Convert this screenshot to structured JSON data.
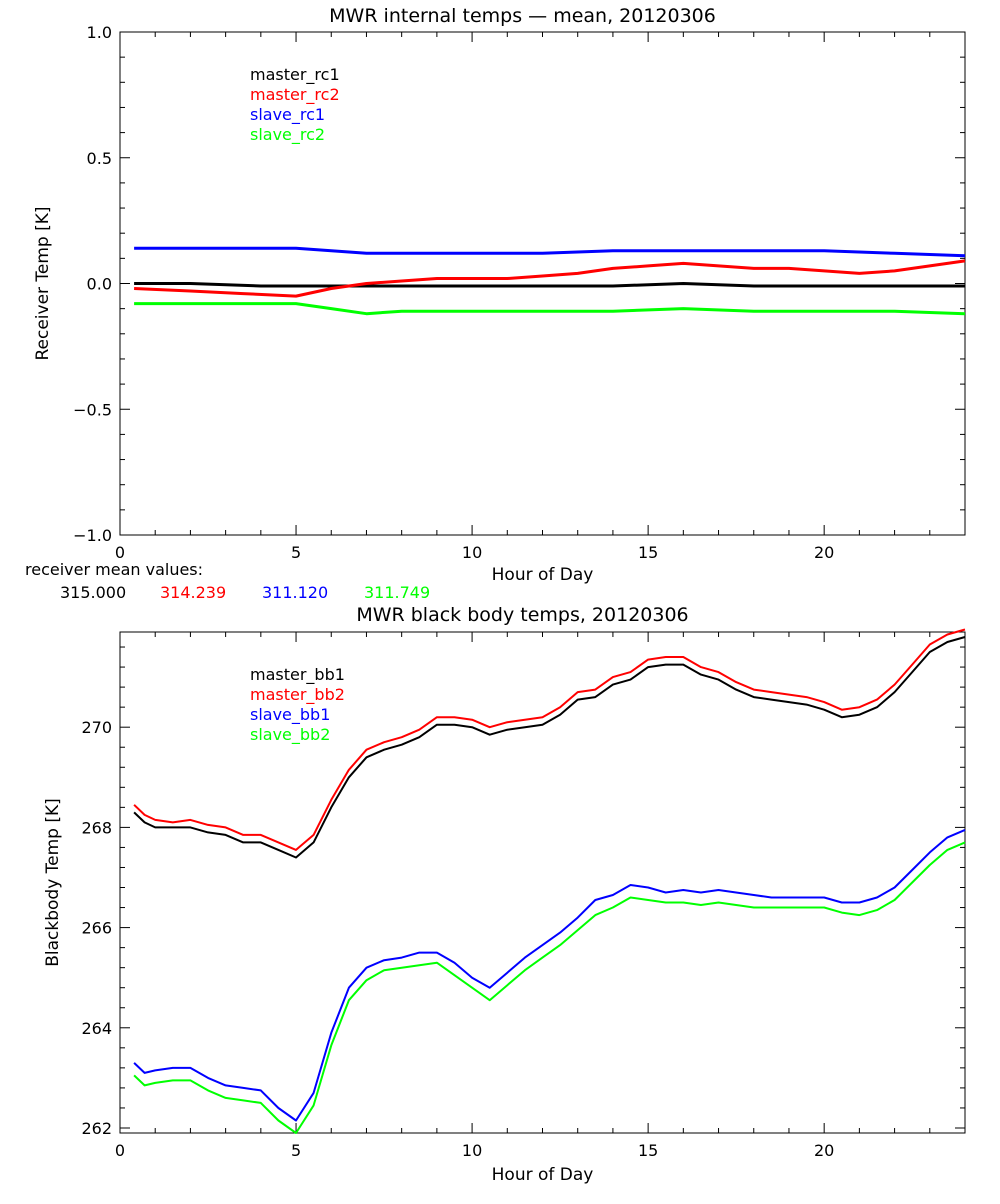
{
  "chart_data": [
    {
      "type": "line",
      "title": "MWR internal temps — mean, 20120306",
      "xlabel": "Hour of Day",
      "ylabel": "Receiver Temp [K]",
      "xlim": [
        0,
        24
      ],
      "ylim": [
        -1.0,
        1.0
      ],
      "xticks": [
        0,
        5,
        10,
        15,
        20
      ],
      "yticks": [
        -1.0,
        -0.5,
        0.0,
        0.5,
        1.0
      ],
      "ytick_labels": [
        "−1.0",
        "−0.5",
        "0.0",
        "0.5",
        "1.0"
      ],
      "grid": false,
      "legend_position": "top-left",
      "series": [
        {
          "name": "master_rc1",
          "color": "#000000",
          "x": [
            0.4,
            2,
            4,
            5,
            6,
            7,
            8,
            10,
            12,
            14,
            16,
            18,
            20,
            22,
            24
          ],
          "y": [
            0.0,
            0.0,
            -0.01,
            -0.01,
            -0.01,
            -0.01,
            -0.01,
            -0.01,
            -0.01,
            -0.01,
            0.0,
            -0.01,
            -0.01,
            -0.01,
            -0.01
          ]
        },
        {
          "name": "master_rc2",
          "color": "#ff0000",
          "x": [
            0.4,
            2,
            3.5,
            5,
            6,
            7,
            8,
            9,
            10,
            11,
            12,
            13,
            14,
            15,
            16,
            17,
            18,
            19,
            20,
            21,
            22,
            23,
            24
          ],
          "y": [
            -0.02,
            -0.03,
            -0.04,
            -0.05,
            -0.02,
            0.0,
            0.01,
            0.02,
            0.02,
            0.02,
            0.03,
            0.04,
            0.06,
            0.07,
            0.08,
            0.07,
            0.06,
            0.06,
            0.05,
            0.04,
            0.05,
            0.07,
            0.09
          ]
        },
        {
          "name": "slave_rc1",
          "color": "#0000ff",
          "x": [
            0.4,
            2,
            4,
            5,
            6,
            7,
            8,
            10,
            12,
            14,
            16,
            18,
            20,
            22,
            24
          ],
          "y": [
            0.14,
            0.14,
            0.14,
            0.14,
            0.13,
            0.12,
            0.12,
            0.12,
            0.12,
            0.13,
            0.13,
            0.13,
            0.13,
            0.12,
            0.11
          ]
        },
        {
          "name": "slave_rc2",
          "color": "#00ff00",
          "x": [
            0.4,
            2,
            4,
            5,
            6,
            7,
            8,
            10,
            12,
            14,
            16,
            18,
            20,
            22,
            24
          ],
          "y": [
            -0.08,
            -0.08,
            -0.08,
            -0.08,
            -0.1,
            -0.12,
            -0.11,
            -0.11,
            -0.11,
            -0.11,
            -0.1,
            -0.11,
            -0.11,
            -0.11,
            -0.12
          ]
        }
      ]
    },
    {
      "type": "line",
      "title": "MWR black body temps, 20120306",
      "xlabel": "Hour of Day",
      "ylabel": "Blackbody Temp [K]",
      "xlim": [
        0,
        24
      ],
      "ylim": [
        261.9,
        271.9
      ],
      "xticks": [
        0,
        5,
        10,
        15,
        20
      ],
      "yticks": [
        262,
        264,
        266,
        268,
        270
      ],
      "ytick_labels": [
        "262",
        "264",
        "266",
        "268",
        "270"
      ],
      "grid": false,
      "legend_position": "top-left",
      "series": [
        {
          "name": "master_bb1",
          "color": "#000000",
          "x": [
            0.4,
            0.7,
            1.0,
            1.5,
            2.0,
            2.5,
            3.0,
            3.5,
            4.0,
            4.5,
            5.0,
            5.5,
            6.0,
            6.5,
            7.0,
            7.5,
            8.0,
            8.5,
            9.0,
            9.5,
            10.0,
            10.5,
            11.0,
            11.5,
            12.0,
            12.5,
            13.0,
            13.5,
            14.0,
            14.5,
            15.0,
            15.5,
            16.0,
            16.5,
            17.0,
            17.5,
            18.0,
            18.5,
            19.0,
            19.5,
            20.0,
            20.5,
            21.0,
            21.5,
            22.0,
            22.5,
            23.0,
            23.5,
            24.0
          ],
          "y": [
            268.3,
            268.1,
            268.0,
            268.0,
            268.0,
            267.9,
            267.85,
            267.7,
            267.7,
            267.55,
            267.4,
            267.7,
            268.4,
            269.0,
            269.4,
            269.55,
            269.65,
            269.8,
            270.05,
            270.05,
            270.0,
            269.85,
            269.95,
            270.0,
            270.05,
            270.25,
            270.55,
            270.6,
            270.85,
            270.95,
            271.2,
            271.25,
            271.25,
            271.05,
            270.95,
            270.75,
            270.6,
            270.55,
            270.5,
            270.45,
            270.35,
            270.2,
            270.25,
            270.4,
            270.7,
            271.1,
            271.5,
            271.7,
            271.8
          ]
        },
        {
          "name": "master_bb2",
          "color": "#ff0000",
          "x": [
            0.4,
            0.7,
            1.0,
            1.5,
            2.0,
            2.5,
            3.0,
            3.5,
            4.0,
            4.5,
            5.0,
            5.5,
            6.0,
            6.5,
            7.0,
            7.5,
            8.0,
            8.5,
            9.0,
            9.5,
            10.0,
            10.5,
            11.0,
            11.5,
            12.0,
            12.5,
            13.0,
            13.5,
            14.0,
            14.5,
            15.0,
            15.5,
            16.0,
            16.5,
            17.0,
            17.5,
            18.0,
            18.5,
            19.0,
            19.5,
            20.0,
            20.5,
            21.0,
            21.5,
            22.0,
            22.5,
            23.0,
            23.5,
            24.0
          ],
          "y": [
            268.45,
            268.25,
            268.15,
            268.1,
            268.15,
            268.05,
            268.0,
            267.85,
            267.85,
            267.7,
            267.55,
            267.85,
            268.55,
            269.15,
            269.55,
            269.7,
            269.8,
            269.95,
            270.2,
            270.2,
            270.15,
            270.0,
            270.1,
            270.15,
            270.2,
            270.4,
            270.7,
            270.75,
            271.0,
            271.1,
            271.35,
            271.4,
            271.4,
            271.2,
            271.1,
            270.9,
            270.75,
            270.7,
            270.65,
            270.6,
            270.5,
            270.35,
            270.4,
            270.55,
            270.85,
            271.25,
            271.65,
            271.85,
            271.95
          ]
        },
        {
          "name": "slave_bb1",
          "color": "#0000ff",
          "x": [
            0.4,
            0.7,
            1.0,
            1.5,
            2.0,
            2.5,
            3.0,
            3.5,
            4.0,
            4.5,
            5.0,
            5.5,
            6.0,
            6.5,
            7.0,
            7.5,
            8.0,
            8.5,
            9.0,
            9.5,
            10.0,
            10.5,
            11.0,
            11.5,
            12.0,
            12.5,
            13.0,
            13.5,
            14.0,
            14.5,
            15.0,
            15.5,
            16.0,
            16.5,
            17.0,
            17.5,
            18.0,
            18.5,
            19.0,
            19.5,
            20.0,
            20.5,
            21.0,
            21.5,
            22.0,
            22.5,
            23.0,
            23.5,
            24.0
          ],
          "y": [
            263.3,
            263.1,
            263.15,
            263.2,
            263.2,
            263.0,
            262.85,
            262.8,
            262.75,
            262.4,
            262.15,
            262.7,
            263.9,
            264.8,
            265.2,
            265.35,
            265.4,
            265.5,
            265.5,
            265.3,
            265.0,
            264.8,
            265.1,
            265.4,
            265.65,
            265.9,
            266.2,
            266.55,
            266.65,
            266.85,
            266.8,
            266.7,
            266.75,
            266.7,
            266.75,
            266.7,
            266.65,
            266.6,
            266.6,
            266.6,
            266.6,
            266.5,
            266.5,
            266.6,
            266.8,
            267.15,
            267.5,
            267.8,
            267.95
          ]
        },
        {
          "name": "slave_bb2",
          "color": "#00ff00",
          "x": [
            0.4,
            0.7,
            1.0,
            1.5,
            2.0,
            2.5,
            3.0,
            3.5,
            4.0,
            4.5,
            5.0,
            5.5,
            6.0,
            6.5,
            7.0,
            7.5,
            8.0,
            8.5,
            9.0,
            9.5,
            10.0,
            10.5,
            11.0,
            11.5,
            12.0,
            12.5,
            13.0,
            13.5,
            14.0,
            14.5,
            15.0,
            15.5,
            16.0,
            16.5,
            17.0,
            17.5,
            18.0,
            18.5,
            19.0,
            19.5,
            20.0,
            20.5,
            21.0,
            21.5,
            22.0,
            22.5,
            23.0,
            23.5,
            24.0
          ],
          "y": [
            263.05,
            262.85,
            262.9,
            262.95,
            262.95,
            262.75,
            262.6,
            262.55,
            262.5,
            262.15,
            261.9,
            262.45,
            263.65,
            264.55,
            264.95,
            265.15,
            265.2,
            265.25,
            265.3,
            265.05,
            264.8,
            264.55,
            264.85,
            265.15,
            265.4,
            265.65,
            265.95,
            266.25,
            266.4,
            266.6,
            266.55,
            266.5,
            266.5,
            266.45,
            266.5,
            266.45,
            266.4,
            266.4,
            266.4,
            266.4,
            266.4,
            266.3,
            266.25,
            266.35,
            266.55,
            266.9,
            267.25,
            267.55,
            267.7
          ]
        }
      ]
    }
  ],
  "receiver_mean": {
    "label": "receiver mean values:",
    "values": [
      {
        "text": "315.000",
        "color": "#000000"
      },
      {
        "text": "314.239",
        "color": "#ff0000"
      },
      {
        "text": "311.120",
        "color": "#0000ff"
      },
      {
        "text": "311.749",
        "color": "#00ff00"
      }
    ]
  }
}
